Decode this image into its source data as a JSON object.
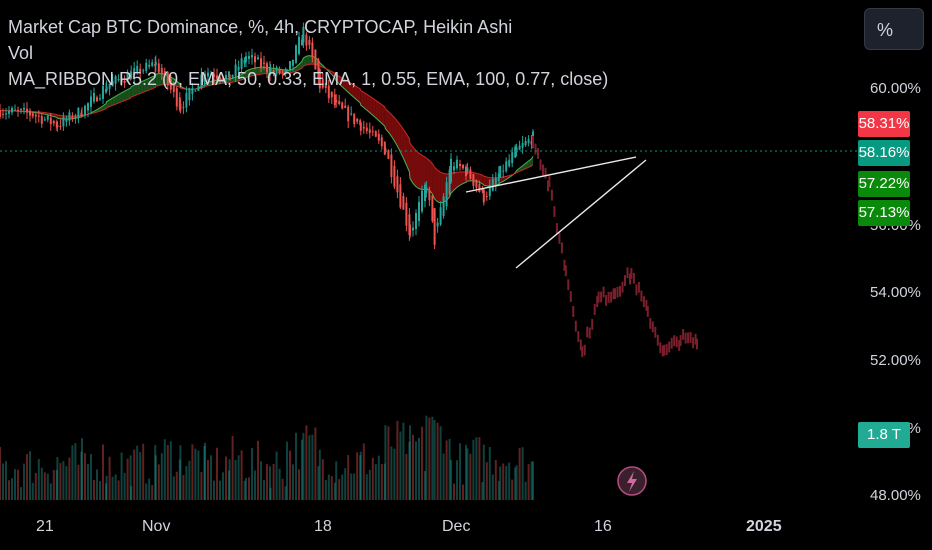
{
  "legend": {
    "title": "Market Cap BTC Dominance, %, 4h, CRYPTOCAP, Heikin Ashi",
    "vol": "Vol",
    "ribbon": "MA_RIBBON R5.2 (0, EMA, 50, 0.33, EMA, 1, 0.55, EMA, 100, 0.77, close)"
  },
  "scale_button": "%",
  "colors": {
    "up": "#26a69a",
    "down": "#ef5350",
    "ribbon_red": "#8b0d0d",
    "ribbon_green": "#1b5e20",
    "projection": "#7a1f2b",
    "tag_red": "#f23645",
    "tag_teal": "#089981",
    "tag_green": "#00897b"
  },
  "price_tags": [
    {
      "text": "58.31%",
      "color": "#f23645"
    },
    {
      "text": "58.16%",
      "color": "#089981"
    },
    {
      "text": "57.22%",
      "color": "#0a8a0a"
    },
    {
      "text": "57.13%",
      "color": "#0a8a0a"
    },
    {
      "text": "1.8 T",
      "color": "#22ab94"
    }
  ],
  "chart_data": {
    "type": "line",
    "title": "Market Cap BTC Dominance, %, 4h, CRYPTOCAP, Heikin Ashi",
    "y_ticks": [
      "60.00%",
      "56.00%",
      "54.00%",
      "52.00%",
      "50.00%",
      "48.00%"
    ],
    "x_ticks": [
      "21",
      "Nov",
      "18",
      "Dec",
      "16",
      "2025"
    ],
    "ylim": [
      47.6,
      61.4
    ],
    "last_price": 58.16,
    "series": [
      {
        "name": "price",
        "x": [
          "2024-10-14",
          "2024-10-18",
          "2024-10-21",
          "2024-10-24",
          "2024-10-27",
          "2024-10-30",
          "2024-11-02",
          "2024-11-05",
          "2024-11-08",
          "2024-11-11",
          "2024-11-13",
          "2024-11-16",
          "2024-11-18",
          "2024-11-20",
          "2024-11-22",
          "2024-11-24",
          "2024-11-27",
          "2024-11-30",
          "2024-12-03",
          "2024-12-05",
          "2024-12-06",
          "2024-12-08",
          "2024-12-10",
          "2024-12-12",
          "2024-12-14",
          "2024-12-16",
          "2024-12-18"
        ],
        "values": [
          58.9,
          58.8,
          58.5,
          58.9,
          59.6,
          59.9,
          60.2,
          59.0,
          60.0,
          59.8,
          60.4,
          60.0,
          59.9,
          61.1,
          59.6,
          59.0,
          58.5,
          57.8,
          55.5,
          56.9,
          55.3,
          57.5,
          57.2,
          56.5,
          57.2,
          57.8,
          58.16
        ]
      },
      {
        "name": "projection",
        "x": [
          "2024-12-18",
          "2024-12-20",
          "2024-12-22",
          "2024-12-24",
          "2024-12-26",
          "2024-12-28",
          "2024-12-30",
          "2025-01-01",
          "2025-01-03",
          "2025-01-05",
          "2025-01-07"
        ],
        "values": [
          58.16,
          56.8,
          54.5,
          52.2,
          53.7,
          53.9,
          54.4,
          53.3,
          52.2,
          52.6,
          52.5
        ]
      }
    ]
  }
}
